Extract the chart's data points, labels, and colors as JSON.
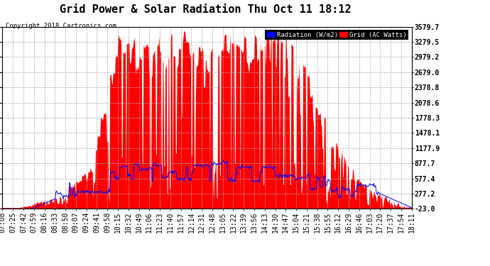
{
  "title": "Grid Power & Solar Radiation Thu Oct 11 18:12",
  "copyright": "Copyright 2018 Cartronics.com",
  "legend_radiation": "Radiation (W/m2)",
  "legend_grid": "Grid (AC Watts)",
  "yticks": [
    3579.7,
    3279.5,
    2979.2,
    2679.0,
    2378.8,
    2078.6,
    1778.3,
    1478.1,
    1177.9,
    877.7,
    577.4,
    277.2,
    -23.0
  ],
  "ytick_labels": [
    "3579.7",
    "3279.5",
    "2979.2",
    "2679.0",
    "2378.8",
    "2078.6",
    "1778.3",
    "1478.1",
    "1177.9",
    "877.7",
    "577.4",
    "277.2",
    "-23.0"
  ],
  "ymin": -23.0,
  "ymax": 3579.7,
  "bg_color": "#ffffff",
  "plot_bg_color": "#ffffff",
  "grid_color": "#aaaaaa",
  "radiation_color": "#ff0000",
  "grid_power_color": "#0000ff",
  "title_fontsize": 11,
  "tick_label_fontsize": 7,
  "xtick_labels": [
    "07:08",
    "07:25",
    "07:42",
    "07:59",
    "08:16",
    "08:33",
    "08:50",
    "09:07",
    "09:24",
    "09:41",
    "09:58",
    "10:15",
    "10:32",
    "10:49",
    "11:06",
    "11:23",
    "11:40",
    "11:57",
    "12:14",
    "12:31",
    "12:48",
    "13:05",
    "13:22",
    "13:39",
    "13:56",
    "14:13",
    "14:30",
    "14:47",
    "15:04",
    "15:21",
    "15:38",
    "15:55",
    "16:12",
    "16:29",
    "16:46",
    "17:03",
    "17:20",
    "17:37",
    "17:54",
    "18:11"
  ]
}
